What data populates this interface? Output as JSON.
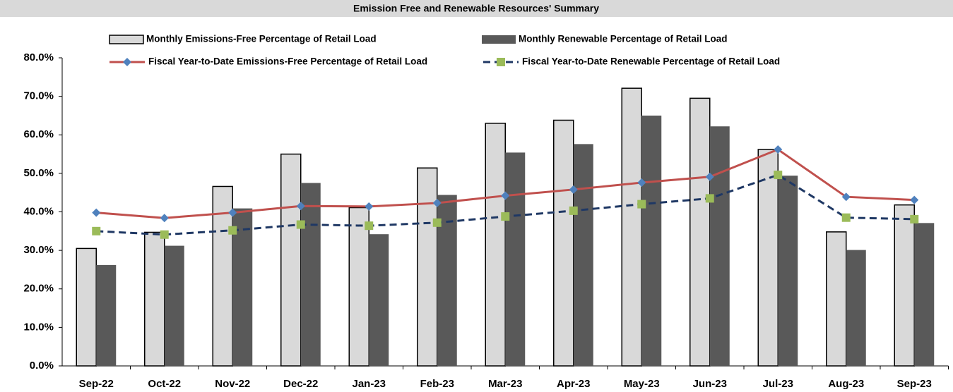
{
  "chart_data": {
    "type": "bar_line",
    "title": "Emission Free and Renewable Resources' Summary",
    "categories": [
      "Sep-22",
      "Oct-22",
      "Nov-22",
      "Dec-22",
      "Jan-23",
      "Feb-23",
      "Mar-23",
      "Apr-23",
      "May-23",
      "Jun-23",
      "Jul-23",
      "Aug-23",
      "Sep-23"
    ],
    "series": [
      {
        "name": "Monthly Emissions-Free Percentage of Retail Load",
        "kind": "bar",
        "color": "#d9d9d9",
        "values": [
          30.5,
          34.7,
          46.6,
          55.0,
          41.1,
          51.4,
          63.0,
          63.8,
          72.1,
          69.5,
          56.2,
          34.8,
          41.8
        ]
      },
      {
        "name": "Monthly Renewable Percentage of Retail Load",
        "kind": "bar",
        "color": "#595959",
        "values": [
          26.2,
          31.2,
          40.9,
          47.5,
          34.2,
          44.4,
          55.4,
          57.6,
          65.0,
          62.2,
          49.4,
          30.1,
          37.1
        ]
      },
      {
        "name": "Fiscal Year-to-Date Emissions-Free Percentage of Retail Load",
        "kind": "line",
        "color": "#c0504d",
        "marker_color": "#4f81bd",
        "marker": "diamond",
        "values": [
          39.8,
          38.4,
          39.8,
          41.5,
          41.4,
          42.3,
          44.2,
          45.8,
          47.6,
          49.1,
          56.2,
          43.9,
          43.1
        ]
      },
      {
        "name": "Fiscal Year-to-Date Renewable Percentage of Retail Load",
        "kind": "line",
        "color": "#1f3864",
        "marker_color": "#9bbb59",
        "marker": "square",
        "dashed": true,
        "values": [
          35.0,
          34.1,
          35.2,
          36.7,
          36.4,
          37.2,
          38.8,
          40.3,
          42.0,
          43.5,
          49.6,
          38.5,
          38.1
        ]
      }
    ],
    "ylim": [
      0,
      80
    ],
    "yticks": [
      {
        "value": 0,
        "label": "0.0%"
      },
      {
        "value": 10,
        "label": "10.0%"
      },
      {
        "value": 20,
        "label": "20.0%"
      },
      {
        "value": 30,
        "label": "30.0%"
      },
      {
        "value": 40,
        "label": "40.0%"
      },
      {
        "value": 50,
        "label": "50.0%"
      },
      {
        "value": 60,
        "label": "60.0%"
      },
      {
        "value": 70,
        "label": "70.0%"
      },
      {
        "value": 80,
        "label": "80.0%"
      }
    ]
  }
}
